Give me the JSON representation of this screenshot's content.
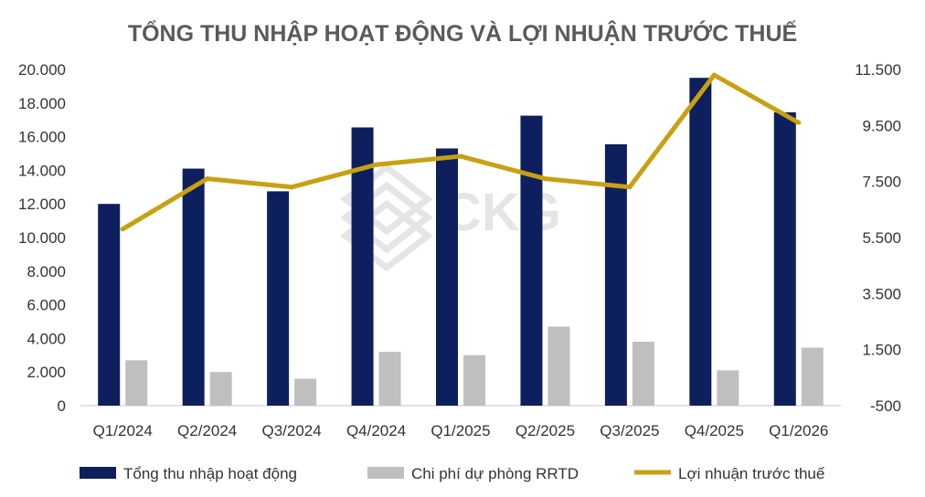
{
  "chart_data": {
    "type": "bar",
    "title": "TỔNG THU NHẬP HOẠT ĐỘNG VÀ LỢI NHUẬN TRƯỚC THUẾ",
    "categories": [
      "Q1/2024",
      "Q2/2024",
      "Q3/2024",
      "Q4/2024",
      "Q1/2025",
      "Q2/2025",
      "Q3/2025",
      "Q4/2025",
      "Q1/2026"
    ],
    "y_left": {
      "ticks": [
        "20.000",
        "18.000",
        "16.000",
        "14.000",
        "12.000",
        "10.000",
        "8.000",
        "6.000",
        "4.000",
        "2.000",
        "0"
      ],
      "ylim": [
        0,
        20000
      ]
    },
    "y_right": {
      "ticks": [
        "11.500",
        "9.500",
        "7.500",
        "5.500",
        "3.500",
        "1.500",
        "-500"
      ],
      "ylim": [
        -500,
        11500
      ]
    },
    "series": [
      {
        "name": "Tổng thu nhập hoạt động",
        "type": "bar",
        "axis": "left",
        "color": "#0d1f5c",
        "values": [
          12000,
          14100,
          12750,
          16550,
          15300,
          17250,
          15550,
          19500,
          17450
        ]
      },
      {
        "name": "Chi phí dự phòng RRTD",
        "type": "bar",
        "axis": "left",
        "color": "#bfbfbf",
        "values": [
          2700,
          2000,
          1600,
          3200,
          3000,
          4700,
          3800,
          2100,
          3450
        ]
      },
      {
        "name": "Lợi nhuận trước thuế",
        "type": "line",
        "axis": "right",
        "color": "#c9a011",
        "values": [
          5800,
          7600,
          7300,
          8100,
          8400,
          7600,
          7300,
          11300,
          9600
        ]
      }
    ],
    "legend_position": "bottom",
    "grid": false,
    "watermark": "CKG"
  }
}
